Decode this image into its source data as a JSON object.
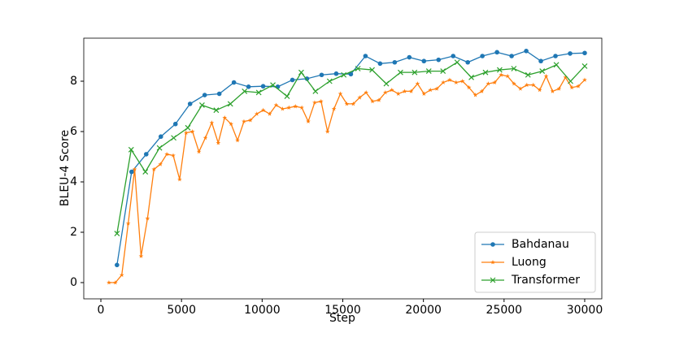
{
  "chart_data": {
    "type": "line",
    "x_label": "Step",
    "y_label": "BLEU-4 Score",
    "xlim": [
      -1060,
      31060
    ],
    "ylim": [
      -0.645,
      9.71
    ],
    "xticks": [
      0,
      5000,
      10000,
      15000,
      20000,
      25000,
      30000
    ],
    "yticks": [
      0,
      2,
      4,
      6,
      8
    ],
    "grid": false,
    "legend": "lower right",
    "series": [
      {
        "name": "Bahdanau",
        "color": "#1f77b4",
        "marker": "circle",
        "x": [
          1000,
          1906,
          2813,
          3719,
          4625,
          5531,
          6438,
          7344,
          8250,
          9156,
          10063,
          10969,
          11875,
          12781,
          13688,
          14594,
          15500,
          16406,
          17313,
          18219,
          19125,
          20031,
          20938,
          21844,
          22750,
          23656,
          24563,
          25469,
          26375,
          27281,
          28188,
          29094,
          30000
        ],
        "values": [
          0.7,
          4.4,
          5.1,
          5.8,
          6.3,
          7.1,
          7.45,
          7.5,
          7.95,
          7.78,
          7.8,
          7.78,
          8.05,
          8.1,
          8.25,
          8.3,
          8.28,
          9.0,
          8.7,
          8.75,
          8.95,
          8.8,
          8.85,
          9.0,
          8.75,
          9.0,
          9.15,
          9.0,
          9.2,
          8.8,
          9.0,
          9.1,
          9.12
        ]
      },
      {
        "name": "Luong",
        "color": "#ff7f0e",
        "marker": "star",
        "x": [
          500,
          899,
          1297,
          1696,
          2095,
          2493,
          2892,
          3291,
          3689,
          4088,
          4486,
          4885,
          5284,
          5682,
          6081,
          6480,
          6878,
          7277,
          7676,
          8074,
          8473,
          8872,
          9270,
          9669,
          10068,
          10466,
          10865,
          11264,
          11662,
          12061,
          12459,
          12858,
          13257,
          13655,
          14054,
          14453,
          14851,
          15250,
          15649,
          16047,
          16446,
          16845,
          17243,
          17642,
          18041,
          18439,
          18838,
          19236,
          19635,
          20034,
          20432,
          20831,
          21230,
          21628,
          22027,
          22426,
          22824,
          23223,
          23622,
          24020,
          24419,
          24818,
          25216,
          25615,
          26014,
          26412,
          26811,
          27209,
          27608,
          28007,
          28405,
          28804,
          29203,
          29601,
          30000
        ],
        "values": [
          0,
          0,
          0.3,
          2.35,
          4.5,
          1.05,
          2.55,
          4.5,
          4.7,
          5.1,
          5.05,
          4.1,
          5.95,
          6.0,
          5.2,
          5.75,
          6.35,
          5.55,
          6.55,
          6.3,
          5.65,
          6.4,
          6.45,
          6.7,
          6.85,
          6.7,
          7.05,
          6.9,
          6.95,
          7.0,
          6.95,
          6.4,
          7.15,
          7.2,
          6.0,
          6.9,
          7.5,
          7.1,
          7.1,
          7.35,
          7.55,
          7.2,
          7.25,
          7.55,
          7.65,
          7.5,
          7.6,
          7.6,
          7.9,
          7.5,
          7.65,
          7.7,
          7.95,
          8.05,
          7.95,
          8.0,
          7.75,
          7.45,
          7.6,
          7.9,
          7.95,
          8.25,
          8.2,
          7.9,
          7.7,
          7.85,
          7.85,
          7.65,
          8.2,
          7.6,
          7.7,
          8.15,
          7.75,
          7.8,
          8.05
        ]
      },
      {
        "name": "Transformer",
        "color": "#2ca02c",
        "marker": "x",
        "x": [
          1000,
          1879,
          2758,
          3636,
          4515,
          5394,
          6273,
          7152,
          8030,
          8909,
          9788,
          10667,
          11545,
          12424,
          13303,
          14182,
          15061,
          15939,
          16818,
          17697,
          18576,
          19455,
          20333,
          21212,
          22091,
          22970,
          23848,
          24727,
          25606,
          26485,
          27364,
          28242,
          29121,
          30000
        ],
        "values": [
          1.95,
          5.28,
          4.4,
          5.35,
          5.75,
          6.15,
          7.05,
          6.85,
          7.1,
          7.6,
          7.55,
          7.85,
          7.4,
          8.35,
          7.6,
          8.0,
          8.25,
          8.5,
          8.45,
          7.9,
          8.35,
          8.35,
          8.4,
          8.4,
          8.75,
          8.15,
          8.35,
          8.45,
          8.5,
          8.25,
          8.4,
          8.65,
          8.0,
          8.6
        ]
      }
    ]
  }
}
